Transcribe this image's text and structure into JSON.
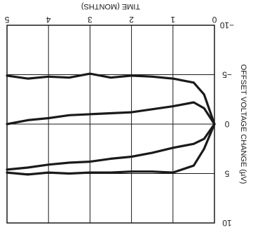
{
  "chart_data": {
    "type": "line",
    "orientation": "rotated-180",
    "xlabel": "TIME (MONTHS)",
    "ylabel": "OFFSET VOLTAGE CHANGE (µV)",
    "x_ticks": [
      "0",
      "1",
      "2",
      "3",
      "4",
      "5"
    ],
    "y_ticks": [
      "−10",
      "−5",
      "0",
      "5",
      "10"
    ],
    "xlim": [
      0,
      5
    ],
    "ylim": [
      -10,
      10
    ],
    "grid": true,
    "line_color": "#1a1a1a",
    "series": [
      {
        "x": [
          0,
          0.25,
          0.5,
          1,
          1.5,
          2,
          2.5,
          3,
          3.5,
          4,
          4.5,
          5
        ],
        "y": [
          0,
          -3,
          -4.2,
          -4.6,
          -4.8,
          -4.9,
          -4.7,
          -5.1,
          -4.7,
          -4.8,
          -4.6,
          -4.9
        ]
      },
      {
        "x": [
          0,
          0.25,
          0.5,
          1,
          1.5,
          2,
          2.5,
          3,
          3.5,
          4,
          4.5,
          5
        ],
        "y": [
          0,
          -1.6,
          -2.2,
          -1.8,
          -1.5,
          -1.2,
          -1.1,
          -1.0,
          -0.9,
          -0.6,
          -0.4,
          0
        ]
      },
      {
        "x": [
          0,
          0.25,
          0.5,
          1,
          1.5,
          2,
          2.5,
          3,
          3.5,
          4,
          4.5,
          5
        ],
        "y": [
          0,
          1.5,
          2.0,
          2.4,
          2.9,
          3.3,
          3.5,
          3.8,
          3.9,
          4.1,
          4.4,
          4.6
        ]
      },
      {
        "x": [
          0,
          0.25,
          0.5,
          1,
          1.5,
          2,
          2.5,
          3,
          3.5,
          4,
          4.5,
          5
        ],
        "y": [
          0,
          2.5,
          4.2,
          4.9,
          4.8,
          4.8,
          4.9,
          4.9,
          5.0,
          4.9,
          5.1,
          4.9
        ]
      }
    ]
  }
}
